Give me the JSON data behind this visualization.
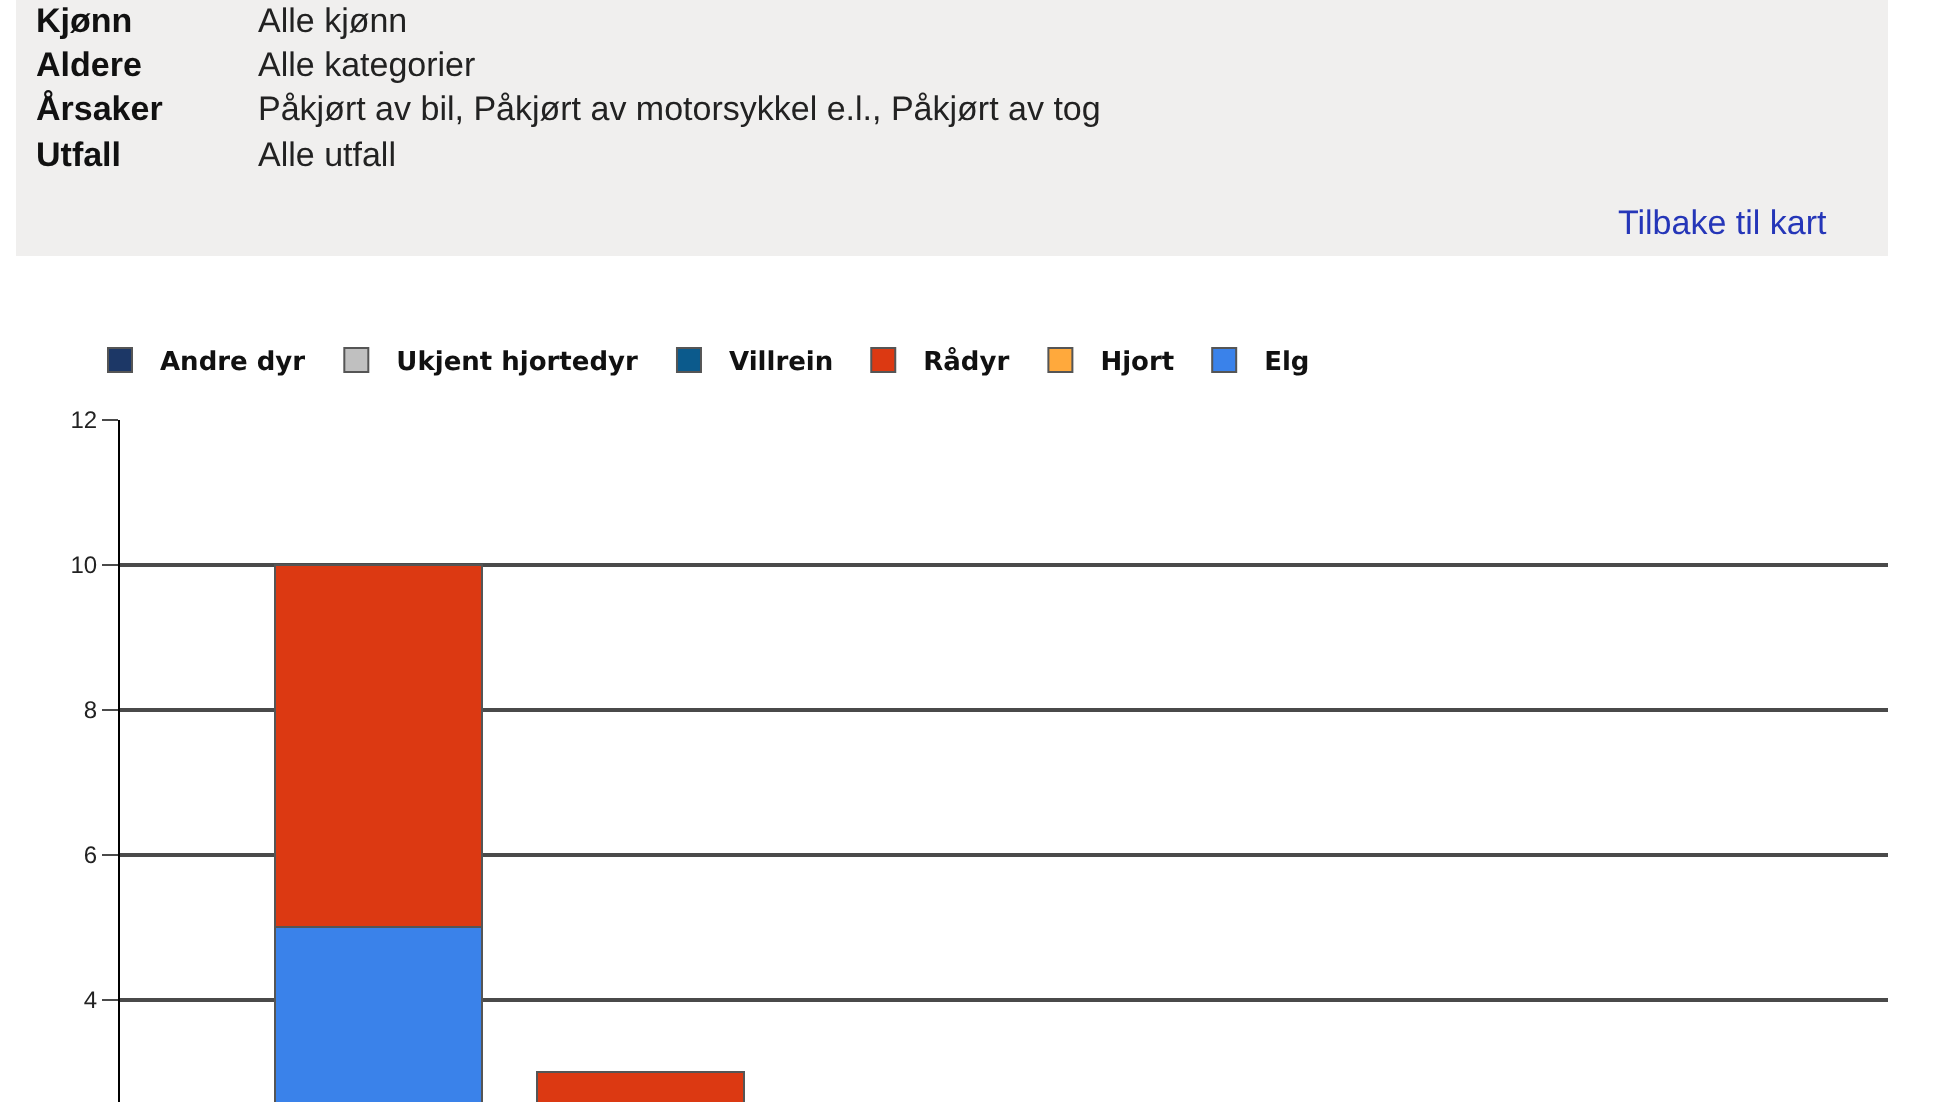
{
  "chart_data": {
    "type": "bar",
    "stacked": true,
    "annotations": [
      "Kjønn",
      "Alle kjønn",
      "Aldere",
      "Alle kategorier",
      "Årsaker",
      "Påkjørt av bil, Påkjørt av motorsykkel e.l., Påkjørt av tog",
      "Utfall",
      "Alle utfall",
      "Tilbake til kart"
    ],
    "categories": [
      null,
      null
    ],
    "series": [
      {
        "name": "Elg",
        "color": "#3a82ea",
        "values": [
          5,
          null
        ]
      },
      {
        "name": "Hjort",
        "color": "#ffa93c",
        "values": [
          null,
          null
        ]
      },
      {
        "name": "Rådyr",
        "color": "#dc3912",
        "values": [
          5,
          3
        ]
      },
      {
        "name": "Villrein",
        "color": "#0b5a8c",
        "values": [
          null,
          null
        ]
      },
      {
        "name": "Ukjent hjortedyr",
        "color": "#c0c0c0",
        "values": [
          null,
          null
        ]
      },
      {
        "name": "Andre dyr",
        "color": "#1c3766",
        "values": [
          null,
          null
        ]
      }
    ],
    "ylim": [
      2.59,
      12
    ],
    "yticks": [
      4,
      6,
      8,
      10,
      12
    ],
    "grid": "y",
    "legend": "top",
    "tick_labels": "y"
  }
}
